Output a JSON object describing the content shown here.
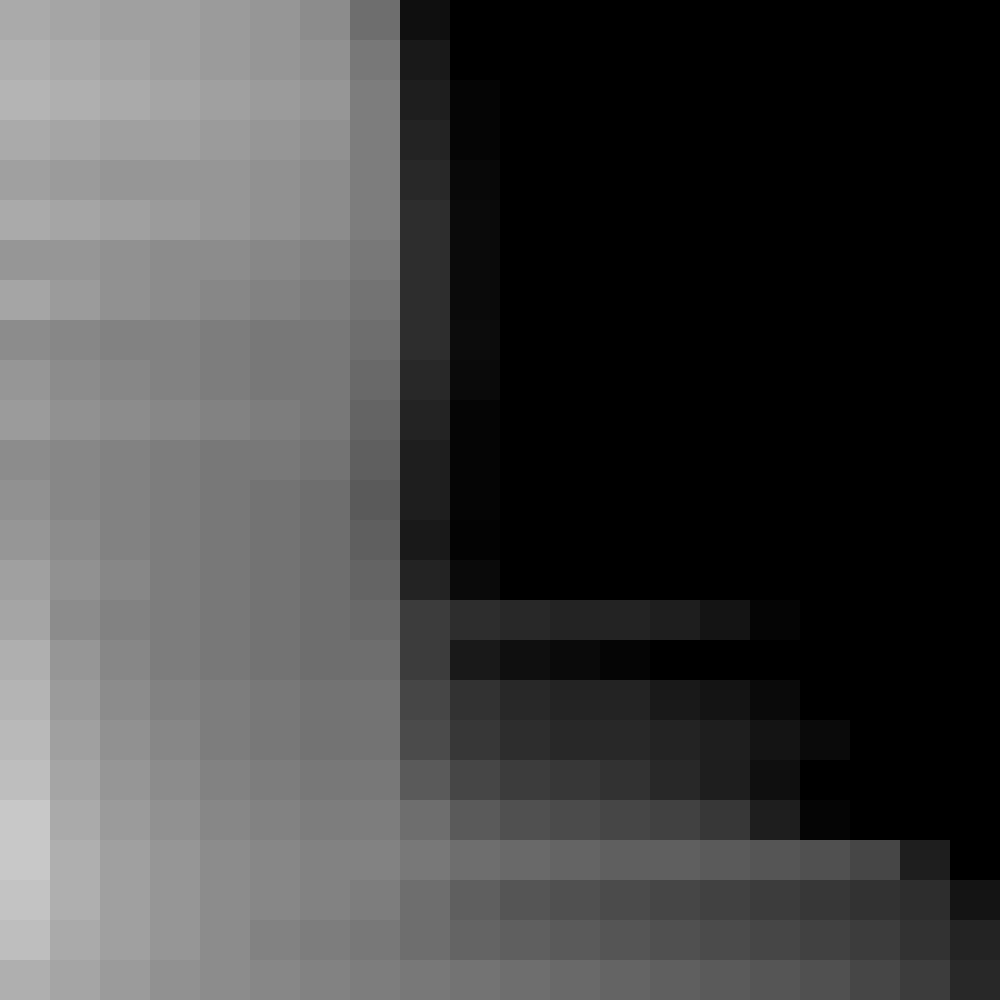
{
  "chart_data": {
    "type": "heatmap",
    "grid": false,
    "tick_labels": false,
    "cells": [
      [
        170,
        165,
        160,
        160,
        155,
        150,
        140,
        110,
        15,
        0,
        0,
        0,
        0,
        0,
        0,
        0,
        0,
        0,
        0,
        0
      ],
      [
        175,
        170,
        165,
        160,
        155,
        150,
        145,
        120,
        25,
        0,
        0,
        0,
        0,
        0,
        0,
        0,
        0,
        0,
        0,
        0
      ],
      [
        180,
        175,
        170,
        165,
        160,
        155,
        150,
        125,
        30,
        5,
        0,
        0,
        0,
        0,
        0,
        0,
        0,
        0,
        0,
        0
      ],
      [
        170,
        165,
        160,
        160,
        155,
        150,
        145,
        125,
        35,
        5,
        0,
        0,
        0,
        0,
        0,
        0,
        0,
        0,
        0,
        0
      ],
      [
        160,
        155,
        150,
        150,
        150,
        145,
        140,
        125,
        40,
        8,
        0,
        0,
        0,
        0,
        0,
        0,
        0,
        0,
        0,
        0
      ],
      [
        170,
        165,
        160,
        155,
        150,
        145,
        140,
        125,
        45,
        10,
        0,
        0,
        0,
        0,
        0,
        0,
        0,
        0,
        0,
        0
      ],
      [
        150,
        150,
        145,
        140,
        140,
        135,
        130,
        120,
        45,
        10,
        0,
        0,
        0,
        0,
        0,
        0,
        0,
        0,
        0,
        0
      ],
      [
        165,
        155,
        145,
        140,
        135,
        130,
        125,
        115,
        45,
        10,
        0,
        0,
        0,
        0,
        0,
        0,
        0,
        0,
        0,
        0
      ],
      [
        140,
        135,
        130,
        130,
        125,
        120,
        120,
        110,
        45,
        12,
        0,
        0,
        0,
        0,
        0,
        0,
        0,
        0,
        0,
        0
      ],
      [
        150,
        140,
        135,
        130,
        125,
        120,
        120,
        105,
        40,
        10,
        0,
        0,
        0,
        0,
        0,
        0,
        0,
        0,
        0,
        0
      ],
      [
        155,
        145,
        140,
        135,
        130,
        125,
        120,
        100,
        35,
        5,
        0,
        0,
        0,
        0,
        0,
        0,
        0,
        0,
        0,
        0
      ],
      [
        140,
        135,
        130,
        125,
        120,
        120,
        115,
        95,
        30,
        5,
        0,
        0,
        0,
        0,
        0,
        0,
        0,
        0,
        0,
        0
      ],
      [
        145,
        135,
        130,
        125,
        120,
        115,
        110,
        90,
        30,
        5,
        0,
        0,
        0,
        0,
        0,
        0,
        0,
        0,
        0,
        0
      ],
      [
        150,
        140,
        130,
        125,
        120,
        115,
        110,
        95,
        25,
        3,
        0,
        0,
        0,
        0,
        0,
        0,
        0,
        0,
        0,
        0
      ],
      [
        160,
        145,
        135,
        125,
        120,
        115,
        110,
        100,
        35,
        10,
        0,
        0,
        0,
        0,
        0,
        0,
        0,
        0,
        0,
        0
      ],
      [
        165,
        140,
        130,
        125,
        120,
        115,
        110,
        105,
        60,
        45,
        40,
        35,
        35,
        30,
        20,
        5,
        0,
        0,
        0,
        0
      ],
      [
        175,
        150,
        135,
        125,
        120,
        115,
        110,
        110,
        60,
        25,
        15,
        10,
        5,
        0,
        0,
        0,
        0,
        0,
        0,
        0
      ],
      [
        180,
        155,
        140,
        130,
        125,
        120,
        115,
        115,
        70,
        50,
        40,
        35,
        35,
        25,
        20,
        10,
        0,
        0,
        0,
        0
      ],
      [
        185,
        160,
        145,
        135,
        125,
        120,
        115,
        115,
        75,
        55,
        45,
        40,
        40,
        35,
        30,
        20,
        10,
        0,
        0,
        0
      ],
      [
        190,
        165,
        150,
        140,
        130,
        125,
        120,
        120,
        90,
        70,
        60,
        55,
        50,
        40,
        30,
        15,
        0,
        0,
        0,
        0
      ],
      [
        200,
        170,
        155,
        145,
        135,
        130,
        125,
        125,
        110,
        90,
        80,
        75,
        70,
        65,
        55,
        30,
        5,
        0,
        0,
        0
      ],
      [
        200,
        175,
        160,
        150,
        140,
        135,
        130,
        130,
        120,
        110,
        105,
        100,
        95,
        95,
        90,
        85,
        80,
        70,
        30,
        0
      ],
      [
        195,
        175,
        160,
        150,
        140,
        135,
        130,
        125,
        110,
        95,
        85,
        80,
        75,
        70,
        65,
        60,
        55,
        50,
        45,
        20
      ],
      [
        190,
        170,
        160,
        150,
        140,
        130,
        125,
        120,
        110,
        100,
        95,
        90,
        85,
        80,
        75,
        70,
        65,
        60,
        50,
        35
      ],
      [
        175,
        165,
        155,
        145,
        140,
        135,
        130,
        125,
        120,
        115,
        110,
        105,
        100,
        95,
        90,
        85,
        80,
        70,
        60,
        40
      ]
    ]
  }
}
